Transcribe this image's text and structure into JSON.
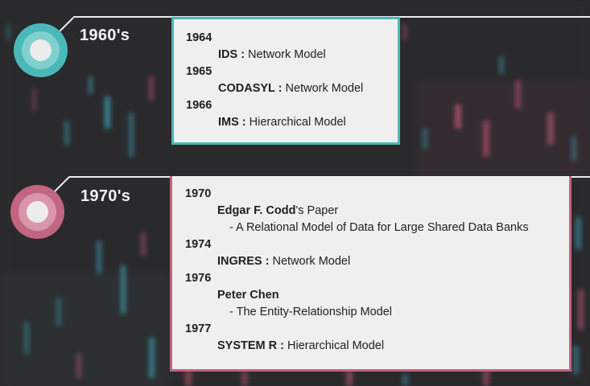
{
  "colors": {
    "teal": "#4ab8b8",
    "rose": "#c06680",
    "card_bg": "#efefef",
    "background": "#2b2a2c"
  },
  "eras": [
    {
      "decade": "1960's",
      "entries": [
        {
          "year": "1964",
          "items": [
            {
              "bold": "IDS :",
              "rest": " Network Model"
            }
          ]
        },
        {
          "year": "1965",
          "items": [
            {
              "bold": "CODASYL :",
              "rest": " Network Model"
            }
          ]
        },
        {
          "year": "1966",
          "items": [
            {
              "bold": "IMS :",
              "rest": " Hierarchical Model"
            }
          ]
        }
      ]
    },
    {
      "decade": "1970's",
      "entries": [
        {
          "year": "1970",
          "items": [
            {
              "bold": "Edgar F. Codd",
              "rest": "'s  Paper"
            },
            {
              "sub": "- A Relational Model of Data for Large Shared Data Banks"
            }
          ]
        },
        {
          "year": "1974",
          "items": [
            {
              "bold": "INGRES :",
              "rest": " Network Model"
            }
          ]
        },
        {
          "year": "1976",
          "items": [
            {
              "bold": "Peter Chen",
              "rest": ""
            },
            {
              "sub": "- The Entity-Relationship Model"
            }
          ]
        },
        {
          "year": "1977",
          "items": [
            {
              "bold": "SYSTEM R :",
              "rest": " Hierarchical Model"
            }
          ]
        }
      ]
    }
  ]
}
